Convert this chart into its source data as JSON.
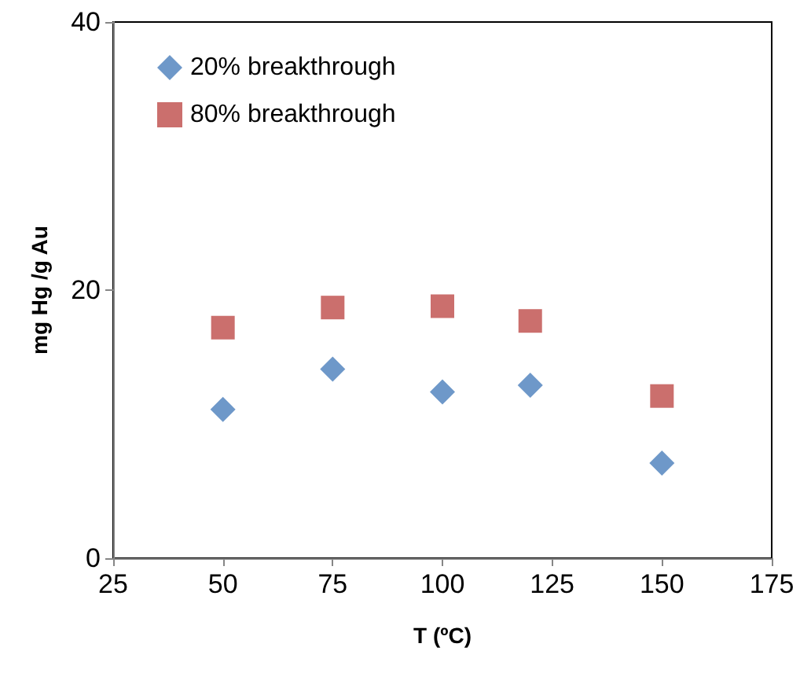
{
  "chart_data": {
    "type": "scatter",
    "xlabel": "T (ºC)",
    "ylabel": "mg Hg /g Au",
    "x": [
      50,
      75,
      100,
      120,
      150
    ],
    "series": [
      {
        "name": "20% breakthrough",
        "color": "#4a7ebb",
        "marker": "diamond",
        "values": [
          11.1,
          14.1,
          12.4,
          12.9,
          7.1
        ]
      },
      {
        "name": "80% breakthrough",
        "color": "#be4b48",
        "marker": "square",
        "values": [
          17.2,
          18.7,
          18.8,
          17.7,
          12.1
        ]
      }
    ],
    "xlim": [
      25,
      175
    ],
    "xticks": [
      25,
      50,
      75,
      100,
      125,
      150,
      175
    ],
    "ylim": [
      0,
      40
    ],
    "yticks": [
      0,
      20,
      40
    ],
    "grid": false,
    "legend": "top left"
  }
}
